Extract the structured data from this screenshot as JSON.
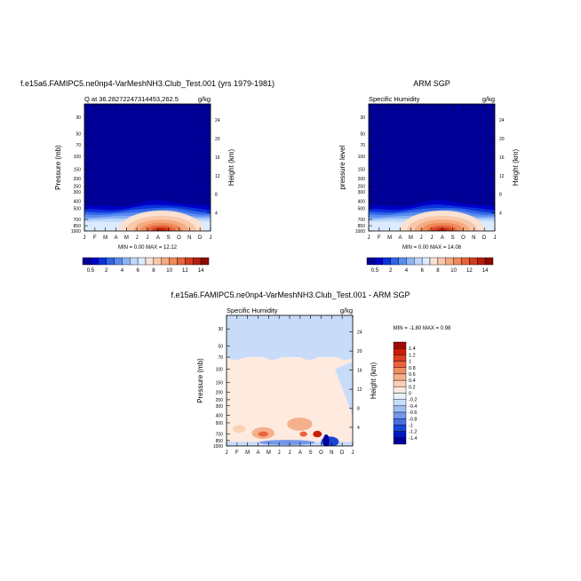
{
  "colors": {
    "scale_fill": [
      "#000096",
      "#0000c8",
      "#0a32dc",
      "#3264e6",
      "#5a8cf0",
      "#8cb4f5",
      "#bed7fa",
      "#dcebff",
      "#fbe1d2",
      "#f8c8aa",
      "#f5aa82",
      "#f08a5a",
      "#e6643c",
      "#d23c1e",
      "#b41e0a",
      "#8c0a00"
    ],
    "diff_fill": [
      "#00009b",
      "#0019c3",
      "#1946d7",
      "#4670e1",
      "#7397eb",
      "#a0bef0",
      "#c8dcfa",
      "#e8f1ff",
      "#ffeadf",
      "#fad0b4",
      "#f5b08c",
      "#f08c64",
      "#eb643c",
      "#dc3c1e",
      "#c81e0a",
      "#a00a00"
    ]
  },
  "chart_data": [
    {
      "type": "heatmap",
      "title": "f.e15a6.FAMIPC5.ne0np4-VarMeshNH3.Club_Test.001 (yrs 1979-1981)",
      "subtitle_left": "Q at 36.28272247314453,262.5",
      "subtitle_right": "g/kg",
      "ylabel": "Pressure (mb)",
      "y2label": "Height (km)",
      "x_ticks": [
        "J",
        "F",
        "M",
        "A",
        "M",
        "J",
        "J",
        "A",
        "S",
        "O",
        "N",
        "D",
        "J"
      ],
      "y_ticks": [
        "30",
        "50",
        "70",
        "100",
        "150",
        "200",
        "250",
        "300",
        "400",
        "500",
        "700",
        "850",
        "1000"
      ],
      "y2_ticks": [
        "24",
        "20",
        "16",
        "12",
        "8",
        "4"
      ],
      "stats": "MIN =  0.00 MAX = 12.12",
      "colorbar_labels": [
        "0.5",
        "2",
        "4",
        "6",
        "8",
        "10",
        "12",
        "14"
      ],
      "field": {
        "peak_month": 7.3,
        "peak_value": 12.12,
        "min": 0.0,
        "max": 12.12
      }
    },
    {
      "type": "heatmap",
      "title": "ARM SGP",
      "subtitle_left": "Specific Humidity",
      "subtitle_right": "g/kg",
      "ylabel": "pressure level",
      "y2label": "Height (km)",
      "x_ticks": [
        "J",
        "F",
        "M",
        "A",
        "M",
        "J",
        "J",
        "A",
        "S",
        "O",
        "N",
        "D",
        "J"
      ],
      "y_ticks": [
        "30",
        "50",
        "70",
        "100",
        "150",
        "200",
        "250",
        "300",
        "400",
        "500",
        "700",
        "850",
        "1000"
      ],
      "y2_ticks": [
        "24",
        "20",
        "16",
        "12",
        "8",
        "4"
      ],
      "stats": "MIN =  0.00 MAX = 14.08",
      "colorbar_labels": [
        "0.5",
        "2",
        "4",
        "6",
        "8",
        "10",
        "12",
        "14"
      ],
      "field": {
        "peak_month": 7.0,
        "peak_value": 14.08,
        "min": 0.0,
        "max": 14.08
      }
    },
    {
      "type": "heatmap",
      "title": "f.e15a6.FAMIPC5.ne0np4-VarMeshNH3.Club_Test.001 - ARM SGP",
      "subtitle_left": "Specific Humidity",
      "subtitle_right": "g/kg",
      "ylabel": "Pressure (mb)",
      "y2label": "Height (km)",
      "x_ticks": [
        "J",
        "F",
        "M",
        "A",
        "M",
        "J",
        "J",
        "A",
        "S",
        "O",
        "N",
        "D",
        "J"
      ],
      "y_ticks": [
        "30",
        "50",
        "70",
        "100",
        "150",
        "200",
        "250",
        "300",
        "400",
        "500",
        "700",
        "850",
        "1000"
      ],
      "y2_ticks": [
        "24",
        "20",
        "16",
        "12",
        "8",
        "4"
      ],
      "stats": "MIN = -1.80 MAX =  0.98",
      "colorbar_labels": [
        "1.4",
        "1.2",
        "1",
        "0.8",
        "0.6",
        "0.4",
        "0.2",
        "0",
        "-0.2",
        "-0.4",
        "-0.6",
        "-0.8",
        "-1",
        "-1.2",
        "-1.4"
      ],
      "field": {
        "min": -1.8,
        "max": 0.98
      }
    }
  ]
}
